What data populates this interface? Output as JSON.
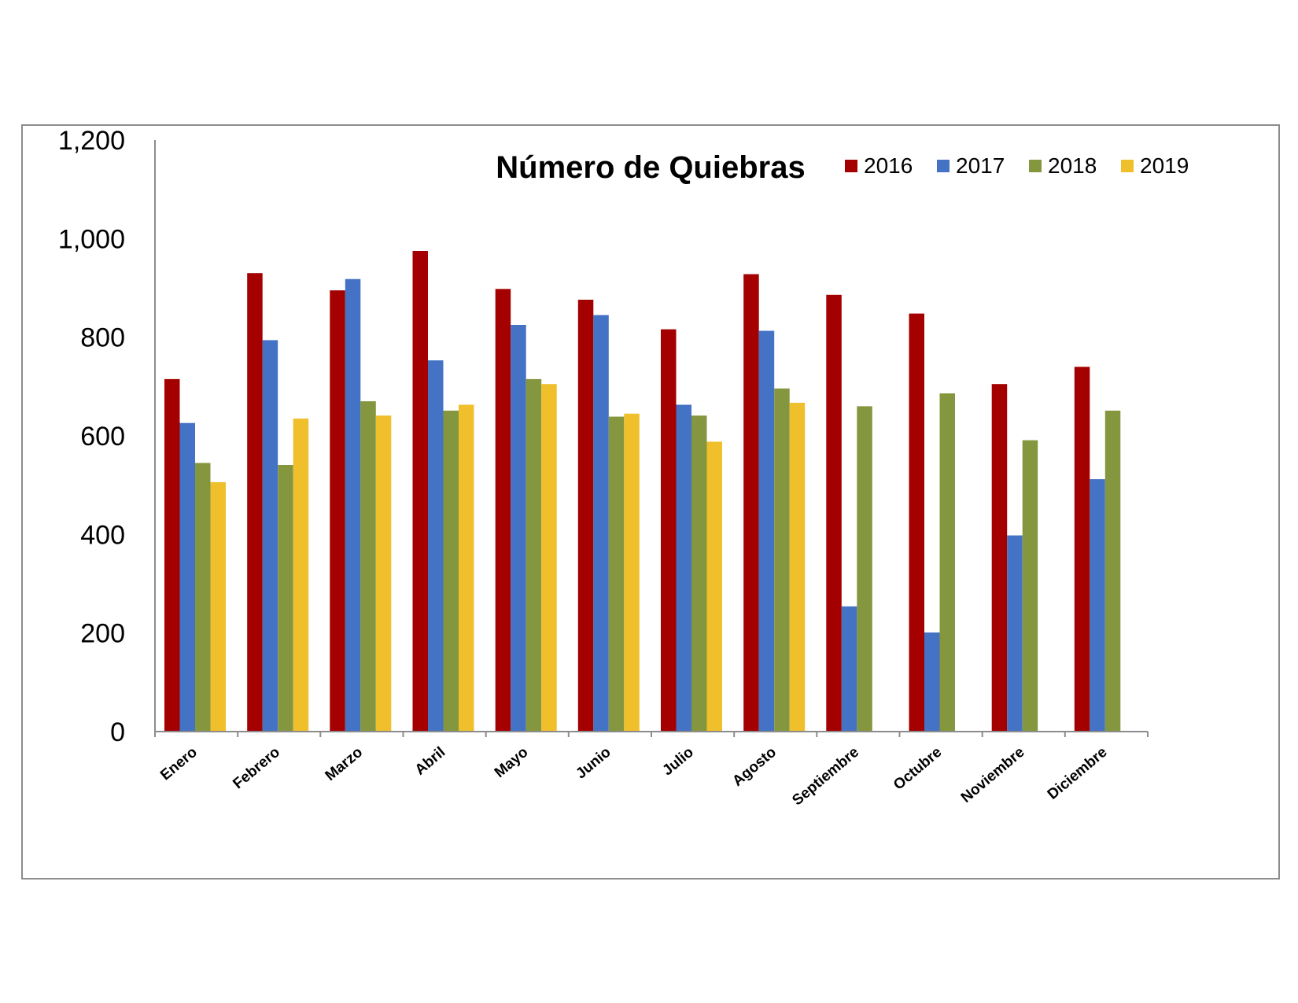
{
  "chart_data": {
    "type": "bar",
    "title": "Número de Quiebras",
    "xlabel": "",
    "ylabel": "",
    "ylim": [
      0,
      1200
    ],
    "yticks": [
      0,
      200,
      400,
      600,
      800,
      1000,
      1200
    ],
    "ytick_labels": [
      "0",
      "200",
      "400",
      "600",
      "800",
      "1,000",
      "1,200"
    ],
    "grid": false,
    "legend_position": "top-right",
    "categories": [
      "Enero",
      "Febrero",
      "Marzo",
      "Abril",
      "Mayo",
      "Junio",
      "Julio",
      "Agosto",
      "Septiembre",
      "Octubre",
      "Noviembre",
      "Diciembre"
    ],
    "series": [
      {
        "name": "2016",
        "color": "#a50000",
        "values": [
          715,
          930,
          895,
          975,
          898,
          876,
          816,
          928,
          886,
          848,
          705,
          740
        ]
      },
      {
        "name": "2017",
        "color": "#4472c4",
        "values": [
          626,
          794,
          918,
          753,
          825,
          845,
          663,
          813,
          254,
          201,
          398,
          512
        ]
      },
      {
        "name": "2018",
        "color": "#84973f",
        "values": [
          545,
          541,
          670,
          651,
          715,
          639,
          641,
          696,
          660,
          686,
          591,
          651
        ]
      },
      {
        "name": "2019",
        "color": "#f0bf2c",
        "values": [
          506,
          635,
          641,
          663,
          705,
          645,
          588,
          667,
          null,
          null,
          null,
          null
        ]
      }
    ]
  }
}
